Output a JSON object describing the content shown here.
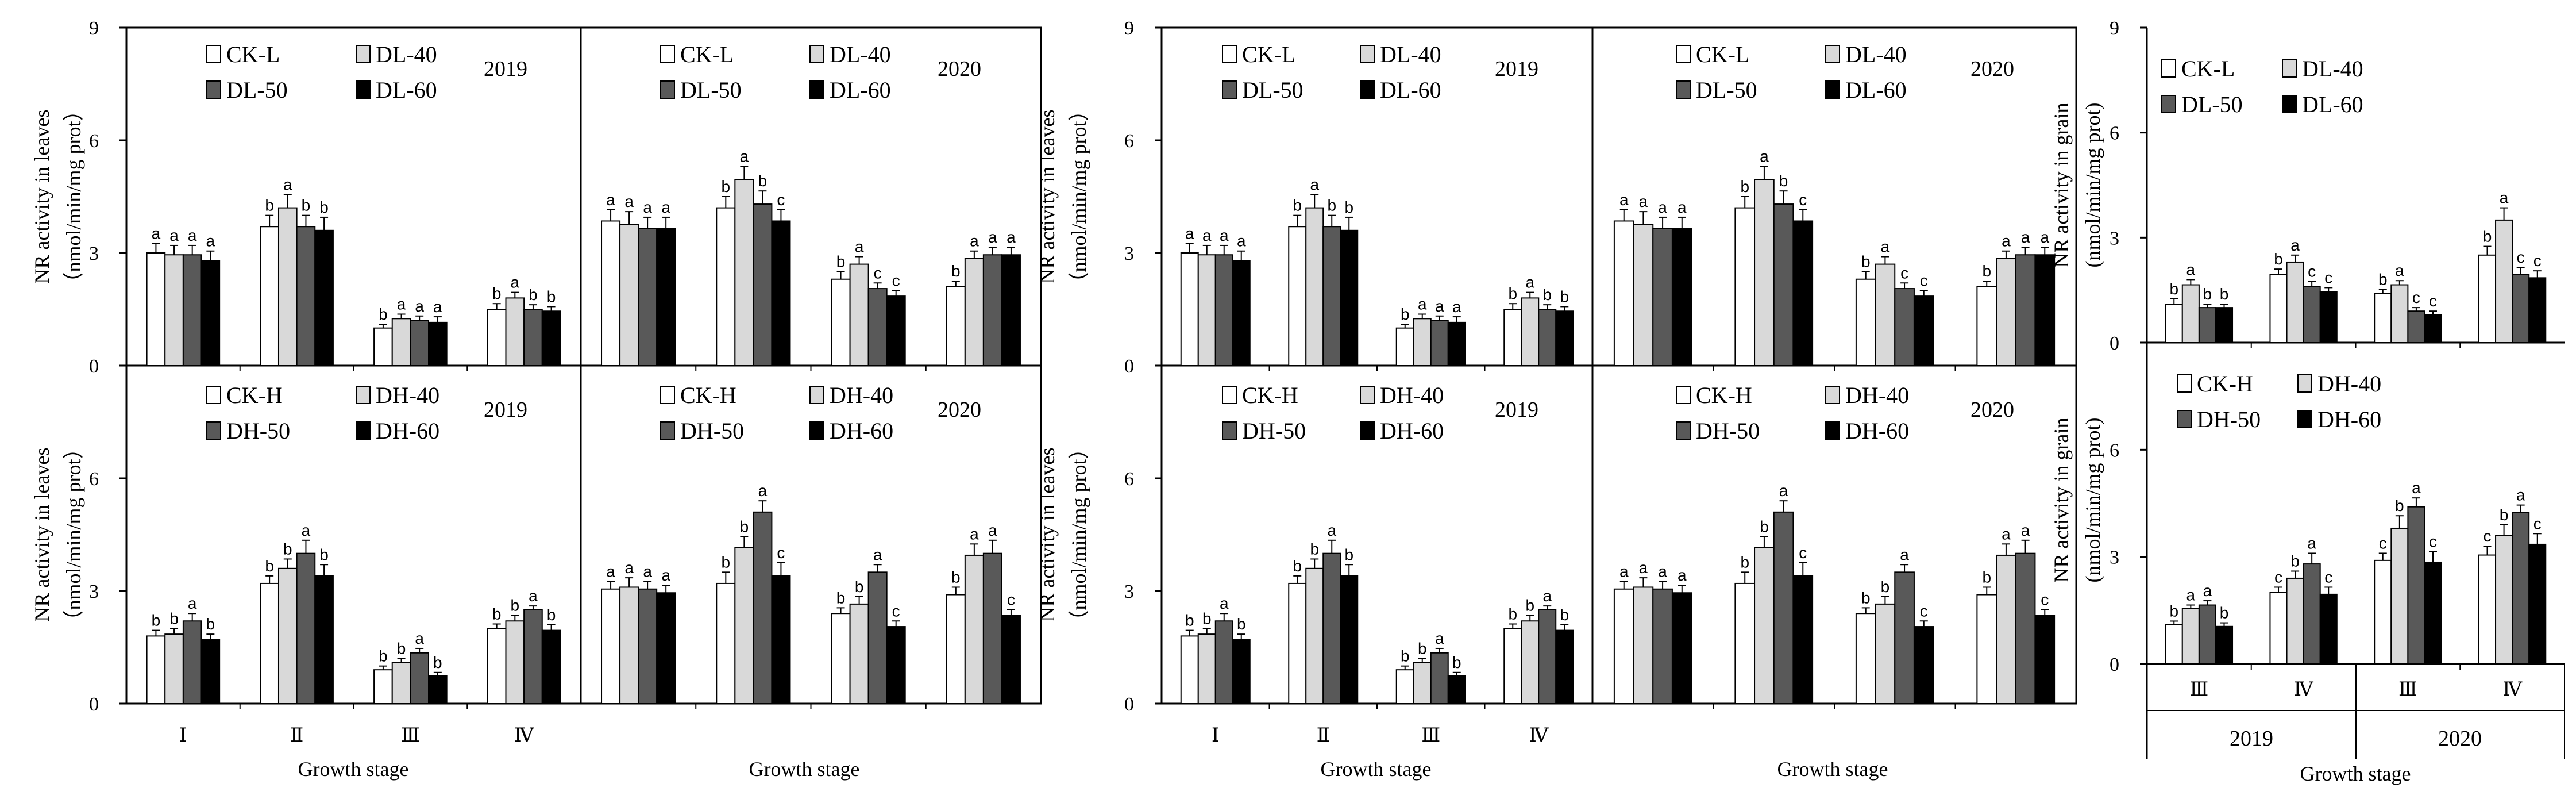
{
  "colors": {
    "c0": "#ffffff",
    "c1": "#d9d9d9",
    "c2": "#595959",
    "c3": "#000000"
  },
  "figure_left": {
    "ylabel_lines": [
      "NR activity in leaves",
      "（nmol/min/mg prot）"
    ],
    "xlabel": "Growth stage",
    "stages": [
      "Ⅰ",
      "Ⅱ",
      "Ⅲ",
      "Ⅳ"
    ],
    "yticks": [
      "0",
      "3",
      "6",
      "9"
    ]
  },
  "figure_right": {
    "ylabel_lines": [
      "NR activity in grain",
      "(nmol/min/mg prot)"
    ],
    "xlabel": "Growth stage",
    "stages": [
      "Ⅲ",
      "Ⅳ",
      "Ⅲ",
      "Ⅳ"
    ],
    "years": [
      "2019",
      "2020"
    ],
    "yticks": [
      "0",
      "3",
      "6",
      "9"
    ]
  },
  "chart_data": [
    {
      "type": "bar",
      "panel": "leaves-DL-2019",
      "title": "2019",
      "ylim": [
        0,
        9
      ],
      "categories": [
        "Ⅰ",
        "Ⅱ",
        "Ⅲ",
        "Ⅳ"
      ],
      "series": [
        {
          "name": "CK-L",
          "values": [
            3.0,
            3.7,
            1.0,
            1.5
          ],
          "errors": [
            0.25,
            0.3,
            0.1,
            0.15
          ],
          "letters": [
            "a",
            "b",
            "b",
            "b"
          ]
        },
        {
          "name": "DL-40",
          "values": [
            2.95,
            4.2,
            1.25,
            1.8
          ],
          "errors": [
            0.25,
            0.35,
            0.12,
            0.15
          ],
          "letters": [
            "a",
            "a",
            "a",
            "a"
          ]
        },
        {
          "name": "DL-50",
          "values": [
            2.95,
            3.7,
            1.2,
            1.5
          ],
          "errors": [
            0.25,
            0.3,
            0.12,
            0.12
          ],
          "letters": [
            "a",
            "b",
            "a",
            "b"
          ]
        },
        {
          "name": "DL-60",
          "values": [
            2.8,
            3.6,
            1.15,
            1.45
          ],
          "errors": [
            0.25,
            0.35,
            0.15,
            0.12
          ],
          "letters": [
            "a",
            "b",
            "a",
            "b"
          ]
        }
      ]
    },
    {
      "type": "bar",
      "panel": "leaves-DL-2020",
      "title": "2020",
      "ylim": [
        0,
        9
      ],
      "categories": [
        "Ⅰ",
        "Ⅱ",
        "Ⅲ",
        "Ⅳ"
      ],
      "series": [
        {
          "name": "CK-L",
          "values": [
            3.85,
            4.2,
            2.3,
            2.1
          ],
          "errors": [
            0.3,
            0.3,
            0.2,
            0.15
          ],
          "letters": [
            "a",
            "b",
            "b",
            "b"
          ]
        },
        {
          "name": "DL-40",
          "values": [
            3.75,
            4.95,
            2.7,
            2.85
          ],
          "errors": [
            0.35,
            0.35,
            0.2,
            0.2
          ],
          "letters": [
            "a",
            "a",
            "a",
            "a"
          ]
        },
        {
          "name": "DL-50",
          "values": [
            3.65,
            4.3,
            2.05,
            2.95
          ],
          "errors": [
            0.3,
            0.35,
            0.15,
            0.2
          ],
          "letters": [
            "a",
            "b",
            "c",
            "a"
          ]
        },
        {
          "name": "DL-60",
          "values": [
            3.65,
            3.85,
            1.85,
            2.95
          ],
          "errors": [
            0.3,
            0.3,
            0.15,
            0.2
          ],
          "letters": [
            "a",
            "c",
            "c",
            "a"
          ]
        }
      ]
    },
    {
      "type": "bar",
      "panel": "leaves-DH-2019",
      "title": "2019",
      "ylim": [
        0,
        9
      ],
      "categories": [
        "Ⅰ",
        "Ⅱ",
        "Ⅲ",
        "Ⅳ"
      ],
      "series": [
        {
          "name": "CK-H",
          "values": [
            1.8,
            3.2,
            0.9,
            2.0
          ],
          "errors": [
            0.15,
            0.2,
            0.1,
            0.12
          ],
          "letters": [
            "b",
            "b",
            "b",
            "b"
          ]
        },
        {
          "name": "DH-40",
          "values": [
            1.85,
            3.6,
            1.1,
            2.2
          ],
          "errors": [
            0.15,
            0.25,
            0.1,
            0.15
          ],
          "letters": [
            "b",
            "b",
            "b",
            "b"
          ]
        },
        {
          "name": "DH-50",
          "values": [
            2.2,
            4.0,
            1.35,
            2.5
          ],
          "errors": [
            0.2,
            0.35,
            0.12,
            0.1
          ],
          "letters": [
            "a",
            "a",
            "a",
            "a"
          ]
        },
        {
          "name": "DH-60",
          "values": [
            1.7,
            3.4,
            0.75,
            1.95
          ],
          "errors": [
            0.15,
            0.3,
            0.08,
            0.15
          ],
          "letters": [
            "b",
            "b",
            "b",
            "b"
          ]
        }
      ]
    },
    {
      "type": "bar",
      "panel": "leaves-DH-2020",
      "title": "2020",
      "ylim": [
        0,
        9
      ],
      "categories": [
        "Ⅰ",
        "Ⅱ",
        "Ⅲ",
        "Ⅳ"
      ],
      "series": [
        {
          "name": "CK-H",
          "values": [
            3.05,
            3.2,
            2.4,
            2.9
          ],
          "errors": [
            0.2,
            0.3,
            0.15,
            0.2
          ],
          "letters": [
            "a",
            "b",
            "b",
            "b"
          ]
        },
        {
          "name": "DH-40",
          "values": [
            3.1,
            4.15,
            2.65,
            3.95
          ],
          "errors": [
            0.25,
            0.3,
            0.2,
            0.3
          ],
          "letters": [
            "a",
            "b",
            "b",
            "a"
          ]
        },
        {
          "name": "DH-50",
          "values": [
            3.05,
            5.1,
            3.5,
            4.0
          ],
          "errors": [
            0.2,
            0.3,
            0.2,
            0.35
          ],
          "letters": [
            "a",
            "a",
            "a",
            "a"
          ]
        },
        {
          "name": "DH-60",
          "values": [
            2.95,
            3.4,
            2.05,
            2.35
          ],
          "errors": [
            0.2,
            0.35,
            0.15,
            0.15
          ],
          "letters": [
            "a",
            "c",
            "c",
            "c"
          ]
        }
      ]
    },
    {
      "type": "bar",
      "panel": "leaves-DL-2019-copy",
      "title": "2019",
      "ylim": [
        0,
        9
      ],
      "categories": [
        "Ⅰ",
        "Ⅱ",
        "Ⅲ",
        "Ⅳ"
      ],
      "series": [
        {
          "name": "CK-L",
          "values": [
            3.0,
            3.7,
            1.0,
            1.5
          ],
          "errors": [
            0.25,
            0.3,
            0.1,
            0.15
          ],
          "letters": [
            "a",
            "b",
            "b",
            "b"
          ]
        },
        {
          "name": "DL-40",
          "values": [
            2.95,
            4.2,
            1.25,
            1.8
          ],
          "errors": [
            0.25,
            0.35,
            0.12,
            0.15
          ],
          "letters": [
            "a",
            "a",
            "a",
            "a"
          ]
        },
        {
          "name": "DL-50",
          "values": [
            2.95,
            3.7,
            1.2,
            1.5
          ],
          "errors": [
            0.25,
            0.3,
            0.12,
            0.12
          ],
          "letters": [
            "a",
            "b",
            "a",
            "b"
          ]
        },
        {
          "name": "DL-60",
          "values": [
            2.8,
            3.6,
            1.15,
            1.45
          ],
          "errors": [
            0.25,
            0.35,
            0.15,
            0.12
          ],
          "letters": [
            "a",
            "b",
            "a",
            "b"
          ]
        }
      ]
    },
    {
      "type": "bar",
      "panel": "leaves-DL-2020-copy",
      "title": "2020",
      "ylim": [
        0,
        9
      ],
      "categories": [
        "Ⅰ",
        "Ⅱ",
        "Ⅲ",
        "Ⅳ"
      ],
      "series": [
        {
          "name": "CK-L",
          "values": [
            3.85,
            4.2,
            2.3,
            2.1
          ],
          "errors": [
            0.3,
            0.3,
            0.2,
            0.15
          ],
          "letters": [
            "a",
            "b",
            "b",
            "b"
          ]
        },
        {
          "name": "DL-40",
          "values": [
            3.75,
            4.95,
            2.7,
            2.85
          ],
          "errors": [
            0.35,
            0.35,
            0.2,
            0.2
          ],
          "letters": [
            "a",
            "a",
            "a",
            "a"
          ]
        },
        {
          "name": "DL-50",
          "values": [
            3.65,
            4.3,
            2.05,
            2.95
          ],
          "errors": [
            0.3,
            0.35,
            0.15,
            0.2
          ],
          "letters": [
            "a",
            "b",
            "c",
            "a"
          ]
        },
        {
          "name": "DL-60",
          "values": [
            3.65,
            3.85,
            1.85,
            2.95
          ],
          "errors": [
            0.3,
            0.3,
            0.15,
            0.2
          ],
          "letters": [
            "a",
            "c",
            "c",
            "a"
          ]
        }
      ]
    },
    {
      "type": "bar",
      "panel": "leaves-DH-2019-copy",
      "title": "2019",
      "ylim": [
        0,
        9
      ],
      "categories": [
        "Ⅰ",
        "Ⅱ",
        "Ⅲ",
        "Ⅳ"
      ],
      "series": [
        {
          "name": "CK-H",
          "values": [
            1.8,
            3.2,
            0.9,
            2.0
          ],
          "errors": [
            0.15,
            0.2,
            0.1,
            0.12
          ],
          "letters": [
            "b",
            "b",
            "b",
            "b"
          ]
        },
        {
          "name": "DH-40",
          "values": [
            1.85,
            3.6,
            1.1,
            2.2
          ],
          "errors": [
            0.15,
            0.25,
            0.1,
            0.15
          ],
          "letters": [
            "b",
            "b",
            "b",
            "b"
          ]
        },
        {
          "name": "DH-50",
          "values": [
            2.2,
            4.0,
            1.35,
            2.5
          ],
          "errors": [
            0.2,
            0.35,
            0.12,
            0.1
          ],
          "letters": [
            "a",
            "a",
            "a",
            "a"
          ]
        },
        {
          "name": "DH-60",
          "values": [
            1.7,
            3.4,
            0.75,
            1.95
          ],
          "errors": [
            0.15,
            0.3,
            0.08,
            0.15
          ],
          "letters": [
            "b",
            "b",
            "b",
            "b"
          ]
        }
      ]
    },
    {
      "type": "bar",
      "panel": "leaves-DH-2020-copy",
      "title": "2020",
      "ylim": [
        0,
        9
      ],
      "categories": [
        "Ⅰ",
        "Ⅱ",
        "Ⅲ",
        "Ⅳ"
      ],
      "series": [
        {
          "name": "CK-H",
          "values": [
            3.05,
            3.2,
            2.4,
            2.9
          ],
          "errors": [
            0.2,
            0.3,
            0.15,
            0.2
          ],
          "letters": [
            "a",
            "b",
            "b",
            "b"
          ]
        },
        {
          "name": "DH-40",
          "values": [
            3.1,
            4.15,
            2.65,
            3.95
          ],
          "errors": [
            0.25,
            0.3,
            0.2,
            0.3
          ],
          "letters": [
            "a",
            "b",
            "b",
            "a"
          ]
        },
        {
          "name": "DH-50",
          "values": [
            3.05,
            5.1,
            3.5,
            4.0
          ],
          "errors": [
            0.2,
            0.3,
            0.2,
            0.35
          ],
          "letters": [
            "a",
            "a",
            "a",
            "a"
          ]
        },
        {
          "name": "DH-60",
          "values": [
            2.95,
            3.4,
            2.05,
            2.35
          ],
          "errors": [
            0.2,
            0.35,
            0.15,
            0.15
          ],
          "letters": [
            "a",
            "c",
            "c",
            "c"
          ]
        }
      ]
    },
    {
      "type": "bar",
      "panel": "grain-DL",
      "title": "",
      "ylim": [
        0,
        9
      ],
      "categories": [
        "Ⅲ",
        "Ⅳ",
        "Ⅲ",
        "Ⅳ"
      ],
      "series": [
        {
          "name": "CK-L",
          "values": [
            1.1,
            1.95,
            1.4,
            2.5
          ],
          "errors": [
            0.15,
            0.15,
            0.12,
            0.25
          ],
          "letters": [
            "b",
            "b",
            "b",
            "b"
          ]
        },
        {
          "name": "DL-40",
          "values": [
            1.65,
            2.3,
            1.65,
            3.5
          ],
          "errors": [
            0.15,
            0.2,
            0.12,
            0.35
          ],
          "letters": [
            "a",
            "a",
            "a",
            "a"
          ]
        },
        {
          "name": "DL-50",
          "values": [
            1.0,
            1.6,
            0.9,
            1.95
          ],
          "errors": [
            0.1,
            0.15,
            0.1,
            0.2
          ],
          "letters": [
            "b",
            "c",
            "c",
            "c"
          ]
        },
        {
          "name": "DL-60",
          "values": [
            1.0,
            1.45,
            0.8,
            1.85
          ],
          "errors": [
            0.1,
            0.12,
            0.1,
            0.2
          ],
          "letters": [
            "b",
            "c",
            "c",
            "c"
          ]
        }
      ]
    },
    {
      "type": "bar",
      "panel": "grain-DH",
      "title": "",
      "ylim": [
        0,
        9
      ],
      "categories": [
        "Ⅲ",
        "Ⅳ",
        "Ⅲ",
        "Ⅳ"
      ],
      "series": [
        {
          "name": "CK-H",
          "values": [
            1.1,
            2.0,
            2.9,
            3.05
          ],
          "errors": [
            0.1,
            0.15,
            0.2,
            0.25
          ],
          "letters": [
            "b",
            "c",
            "c",
            "c"
          ]
        },
        {
          "name": "DH-40",
          "values": [
            1.55,
            2.4,
            3.8,
            3.6
          ],
          "errors": [
            0.1,
            0.2,
            0.35,
            0.3
          ],
          "letters": [
            "a",
            "b",
            "b",
            "b"
          ]
        },
        {
          "name": "DH-50",
          "values": [
            1.65,
            2.8,
            4.4,
            4.25
          ],
          "errors": [
            0.12,
            0.3,
            0.25,
            0.2
          ],
          "letters": [
            "a",
            "a",
            "a",
            "a"
          ]
        },
        {
          "name": "DH-60",
          "values": [
            1.05,
            1.95,
            2.85,
            3.35
          ],
          "errors": [
            0.1,
            0.2,
            0.3,
            0.3
          ],
          "letters": [
            "b",
            "c",
            "c",
            "c"
          ]
        }
      ]
    }
  ]
}
